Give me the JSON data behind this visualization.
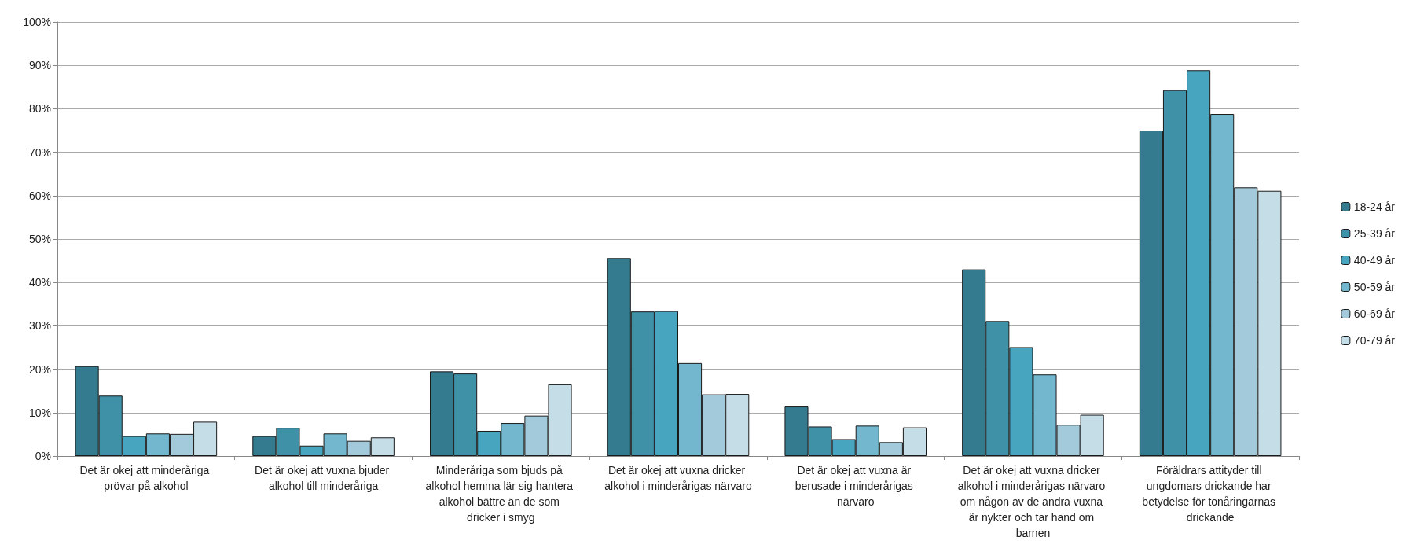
{
  "chart_data": {
    "type": "bar",
    "categories": [
      "Det är okej att minderåriga prövar på alkohol",
      "Det är okej att vuxna bjuder alkohol till minderåriga",
      "Minderåriga som bjuds på alkohol hemma lär sig hantera alkohol bättre än de som dricker i smyg",
      "Det är okej att vuxna dricker alkohol i minderårigas närvaro",
      "Det är okej att vuxna är berusade i minderårigas närvaro",
      "Det är okej att vuxna dricker alkohol i minderårigas närvaro om någon av de andra vuxna är nykter och tar hand om barnen",
      "Föräldrars attityder till ungdomars drickande har betydelse för tonåringarnas drickande"
    ],
    "series": [
      {
        "name": "18-24 år",
        "color": "#347b8f",
        "values": [
          20.7,
          4.6,
          19.5,
          45.6,
          11.4,
          43.0,
          75.0
        ]
      },
      {
        "name": "25-39 år",
        "color": "#3f91a8",
        "values": [
          13.9,
          6.5,
          19.0,
          33.3,
          6.8,
          31.1,
          84.3
        ]
      },
      {
        "name": "40-49 år",
        "color": "#47a5bf",
        "values": [
          4.6,
          2.4,
          5.8,
          33.4,
          3.9,
          25.1,
          88.9
        ]
      },
      {
        "name": "50-59 år",
        "color": "#72b7cd",
        "values": [
          5.2,
          5.2,
          7.6,
          21.4,
          7.0,
          18.8,
          78.8
        ]
      },
      {
        "name": "60-69 år",
        "color": "#a3cadb",
        "values": [
          5.1,
          3.5,
          9.3,
          14.2,
          3.2,
          7.2,
          61.9
        ]
      },
      {
        "name": "70-79 år",
        "color": "#c5dde6",
        "values": [
          7.9,
          4.3,
          16.5,
          14.3,
          6.6,
          9.5,
          61.1
        ]
      }
    ],
    "ylim": [
      0,
      100
    ],
    "yticks": [
      {
        "value": 0,
        "label": "0%"
      },
      {
        "value": 10,
        "label": "10%"
      },
      {
        "value": 20,
        "label": "20%"
      },
      {
        "value": 30,
        "label": "30%"
      },
      {
        "value": 40,
        "label": "40%"
      },
      {
        "value": 50,
        "label": "50%"
      },
      {
        "value": 60,
        "label": "60%"
      },
      {
        "value": 70,
        "label": "70%"
      },
      {
        "value": 80,
        "label": "80%"
      },
      {
        "value": 90,
        "label": "90%"
      },
      {
        "value": 100,
        "label": "100%"
      }
    ],
    "grid": "y",
    "legend": "right"
  }
}
